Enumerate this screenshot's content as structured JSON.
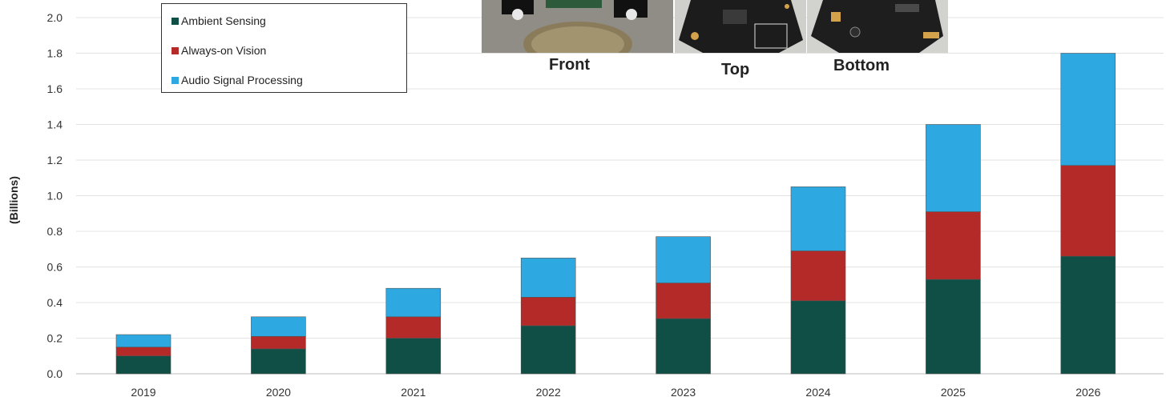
{
  "chart_data": {
    "type": "bar",
    "stacked": true,
    "categories": [
      "2019",
      "2020",
      "2021",
      "2022",
      "2023",
      "2024",
      "2025",
      "2026"
    ],
    "series": [
      {
        "name": "Ambient Sensing",
        "color": "#0f4f45",
        "values": [
          0.1,
          0.14,
          0.2,
          0.27,
          0.31,
          0.41,
          0.53,
          0.66
        ]
      },
      {
        "name": "Always-on Vision",
        "color": "#b32a28",
        "values": [
          0.05,
          0.07,
          0.12,
          0.16,
          0.2,
          0.28,
          0.38,
          0.51
        ]
      },
      {
        "name": "Audio Signal Processing",
        "color": "#2ea8e0",
        "values": [
          0.07,
          0.11,
          0.16,
          0.22,
          0.26,
          0.36,
          0.49,
          0.63
        ]
      }
    ],
    "ylabel": "(Billions)",
    "ylim": [
      0,
      2.0
    ],
    "yticks": [
      "0.0",
      "0.2",
      "0.4",
      "0.6",
      "0.8",
      "1.0",
      "1.2",
      "1.4",
      "1.6",
      "1.8",
      "2.0"
    ],
    "grid": true,
    "legend_position": "top-left"
  },
  "photos": {
    "labels": [
      "Front",
      "Top",
      "Bottom"
    ]
  }
}
